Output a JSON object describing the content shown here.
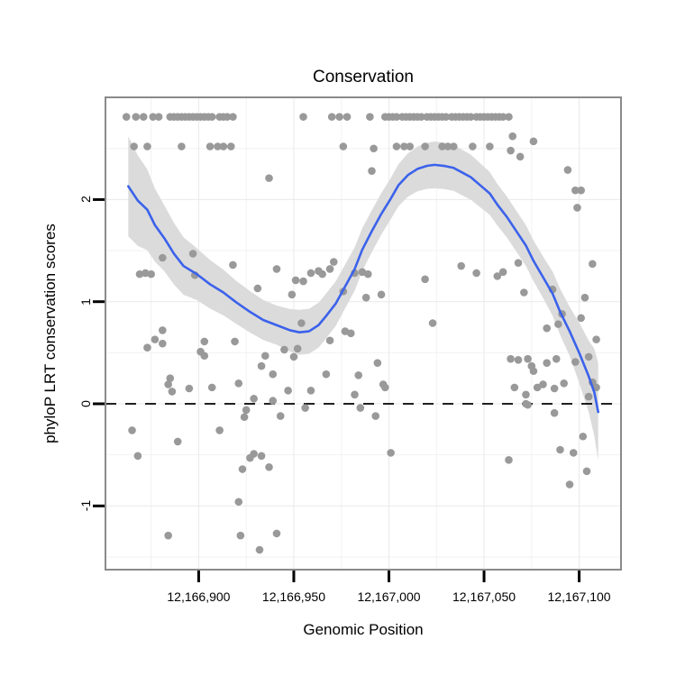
{
  "chart_data": {
    "type": "scatter",
    "title": "Conservation",
    "xlabel": "Genomic Position",
    "ylabel": "phyloP LRT conservation scores",
    "x_ticks": [
      12166900,
      12166950,
      12167000,
      12167050,
      12167100
    ],
    "x_tick_labels": [
      "12,166,900",
      "12,166,950",
      "12,167,000",
      "12,167,050",
      "12,167,100"
    ],
    "x_minor_ticks": [
      12166875,
      12166925,
      12166975,
      12167025,
      12167075
    ],
    "y_ticks": [
      -1,
      0,
      1,
      2
    ],
    "y_tick_labels": [
      "-1",
      "0",
      "1",
      "2"
    ],
    "y_minor_ticks": [
      -1.5,
      -0.5,
      0.5,
      1.5,
      2.5
    ],
    "xlim": [
      12166851,
      12167122
    ],
    "ylim": [
      -1.624,
      3.001
    ],
    "grid": "major+minor, light gray on white",
    "legend": "none",
    "hline": {
      "y": 0,
      "style": "dashed",
      "color": "#000000"
    },
    "colors": {
      "point": "#999999",
      "smooth_line": "#3B62EB",
      "confidence_band": "#DBDBDB",
      "grid_major": "#E9E9E9",
      "grid_minor": "#F2F2F2",
      "panel_border": "#8A8A8A",
      "tick": "#000000",
      "text": "#000000"
    },
    "points": [
      [
        12166862,
        2.81
      ],
      [
        12166867,
        2.81
      ],
      [
        12166871,
        2.81
      ],
      [
        12166876,
        2.81
      ],
      [
        12166879,
        2.81
      ],
      [
        12166885,
        2.81
      ],
      [
        12166887,
        2.81
      ],
      [
        12166889,
        2.81
      ],
      [
        12166891,
        2.81
      ],
      [
        12166893,
        2.81
      ],
      [
        12166895,
        2.81
      ],
      [
        12166897,
        2.81
      ],
      [
        12166899,
        2.81
      ],
      [
        12166901,
        2.81
      ],
      [
        12166903,
        2.81
      ],
      [
        12166905,
        2.81
      ],
      [
        12166907,
        2.81
      ],
      [
        12166911,
        2.81
      ],
      [
        12166913,
        2.81
      ],
      [
        12166915,
        2.81
      ],
      [
        12166918,
        2.81
      ],
      [
        12166955,
        2.81
      ],
      [
        12166970,
        2.81
      ],
      [
        12166974,
        2.81
      ],
      [
        12166978,
        2.81
      ],
      [
        12166990,
        2.81
      ],
      [
        12166998,
        2.81
      ],
      [
        12167000,
        2.81
      ],
      [
        12167002,
        2.81
      ],
      [
        12167004,
        2.81
      ],
      [
        12167007,
        2.81
      ],
      [
        12167009,
        2.81
      ],
      [
        12167011,
        2.81
      ],
      [
        12167013,
        2.81
      ],
      [
        12167015,
        2.81
      ],
      [
        12167017,
        2.81
      ],
      [
        12167020,
        2.81
      ],
      [
        12167022,
        2.81
      ],
      [
        12167024,
        2.81
      ],
      [
        12167026,
        2.81
      ],
      [
        12167028,
        2.81
      ],
      [
        12167030,
        2.81
      ],
      [
        12167033,
        2.81
      ],
      [
        12167035,
        2.81
      ],
      [
        12167037,
        2.81
      ],
      [
        12167039,
        2.81
      ],
      [
        12167041,
        2.81
      ],
      [
        12167043,
        2.81
      ],
      [
        12167046,
        2.81
      ],
      [
        12167048,
        2.81
      ],
      [
        12167050,
        2.81
      ],
      [
        12167052,
        2.81
      ],
      [
        12167054,
        2.81
      ],
      [
        12167056,
        2.81
      ],
      [
        12167058,
        2.81
      ],
      [
        12167060,
        2.81
      ],
      [
        12167063,
        2.81
      ],
      [
        12166866,
        2.52
      ],
      [
        12166873,
        2.52
      ],
      [
        12166891,
        2.52
      ],
      [
        12166906,
        2.52
      ],
      [
        12166910,
        2.52
      ],
      [
        12166913,
        2.52
      ],
      [
        12166917,
        2.52
      ],
      [
        12166976,
        2.52
      ],
      [
        12166992,
        2.5
      ],
      [
        12167004,
        2.52
      ],
      [
        12167008,
        2.52
      ],
      [
        12167011,
        2.52
      ],
      [
        12167019,
        2.52
      ],
      [
        12167028,
        2.52
      ],
      [
        12167031,
        2.52
      ],
      [
        12167034,
        2.52
      ],
      [
        12167044,
        2.52
      ],
      [
        12167053,
        2.52
      ],
      [
        12167064,
        2.48
      ],
      [
        12167065,
        2.62
      ],
      [
        12167069,
        2.42
      ],
      [
        12167076,
        2.57
      ],
      [
        12166937,
        2.21
      ],
      [
        12166991,
        2.28
      ],
      [
        12167094,
        2.29
      ],
      [
        12167098,
        2.09
      ],
      [
        12167101,
        2.09
      ],
      [
        12167099,
        1.92
      ],
      [
        12166881,
        1.43
      ],
      [
        12166897,
        1.47
      ],
      [
        12166869,
        1.27
      ],
      [
        12166872,
        1.28
      ],
      [
        12166875,
        1.27
      ],
      [
        12166898,
        1.26
      ],
      [
        12166918,
        1.36
      ],
      [
        12166931,
        1.13
      ],
      [
        12166941,
        1.32
      ],
      [
        12166951,
        1.21
      ],
      [
        12166955,
        1.2
      ],
      [
        12166959,
        1.28
      ],
      [
        12166963,
        1.3
      ],
      [
        12166965,
        1.27
      ],
      [
        12166969,
        1.32
      ],
      [
        12166971,
        1.39
      ],
      [
        12166982,
        1.28
      ],
      [
        12166986,
        1.29
      ],
      [
        12166989,
        1.27
      ],
      [
        12166949,
        1.07
      ],
      [
        12166976,
        1.1
      ],
      [
        12166988,
        1.04
      ],
      [
        12166996,
        1.07
      ],
      [
        12167019,
        1.22
      ],
      [
        12167038,
        1.35
      ],
      [
        12167046,
        1.28
      ],
      [
        12167057,
        1.25
      ],
      [
        12167060,
        1.29
      ],
      [
        12167068,
        1.38
      ],
      [
        12167107,
        1.37
      ],
      [
        12167071,
        1.09
      ],
      [
        12167086,
        1.12
      ],
      [
        12167103,
        1.04
      ],
      [
        12166954,
        0.79
      ],
      [
        12167023,
        0.79
      ],
      [
        12167091,
        0.88
      ],
      [
        12167101,
        0.84
      ],
      [
        12167083,
        0.74
      ],
      [
        12167089,
        0.78
      ],
      [
        12167109,
        0.63
      ],
      [
        12166881,
        0.72
      ],
      [
        12166877,
        0.63
      ],
      [
        12166881,
        0.59
      ],
      [
        12166873,
        0.55
      ],
      [
        12166903,
        0.61
      ],
      [
        12166901,
        0.51
      ],
      [
        12166903,
        0.47
      ],
      [
        12166919,
        0.61
      ],
      [
        12166969,
        0.62
      ],
      [
        12166977,
        0.71
      ],
      [
        12166980,
        0.69
      ],
      [
        12166935,
        0.47
      ],
      [
        12166933,
        0.37
      ],
      [
        12166939,
        0.29
      ],
      [
        12166945,
        0.53
      ],
      [
        12166952,
        0.54
      ],
      [
        12166950,
        0.46
      ],
      [
        12166994,
        0.4
      ],
      [
        12166967,
        0.29
      ],
      [
        12166984,
        0.28
      ],
      [
        12167064,
        0.44
      ],
      [
        12167068,
        0.43
      ],
      [
        12167073,
        0.44
      ],
      [
        12167075,
        0.37
      ],
      [
        12167076,
        0.32
      ],
      [
        12167083,
        0.4
      ],
      [
        12167088,
        0.44
      ],
      [
        12167098,
        0.41
      ],
      [
        12167105,
        0.46
      ],
      [
        12166885,
        0.25
      ],
      [
        12166884,
        0.19
      ],
      [
        12166886,
        0.12
      ],
      [
        12166895,
        0.15
      ],
      [
        12166907,
        0.16
      ],
      [
        12166921,
        0.2
      ],
      [
        12166997,
        0.19
      ],
      [
        12166998,
        0.16
      ],
      [
        12167066,
        0.16
      ],
      [
        12167072,
        0.09
      ],
      [
        12167078,
        0.16
      ],
      [
        12167081,
        0.19
      ],
      [
        12167087,
        0.15
      ],
      [
        12167092,
        0.2
      ],
      [
        12167107,
        0.21
      ],
      [
        12167109,
        0.16
      ],
      [
        12166929,
        0.05
      ],
      [
        12166939,
        0.03
      ],
      [
        12166947,
        0.13
      ],
      [
        12166959,
        0.13
      ],
      [
        12166982,
        0.09
      ],
      [
        12166956,
        -0.04
      ],
      [
        12166985,
        -0.04
      ],
      [
        12166993,
        -0.12
      ],
      [
        12166925,
        -0.06
      ],
      [
        12166924,
        -0.13
      ],
      [
        12166943,
        -0.12
      ],
      [
        12167072,
        0.0
      ],
      [
        12167073,
        -0.01
      ],
      [
        12167087,
        -0.09
      ],
      [
        12167105,
        0.07
      ],
      [
        12166865,
        -0.26
      ],
      [
        12166889,
        -0.37
      ],
      [
        12166868,
        -0.51
      ],
      [
        12166911,
        -0.26
      ],
      [
        12166927,
        -0.53
      ],
      [
        12166929,
        -0.49
      ],
      [
        12166933,
        -0.51
      ],
      [
        12166923,
        -0.64
      ],
      [
        12166937,
        -0.62
      ],
      [
        12166921,
        -0.96
      ],
      [
        12166884,
        -1.29
      ],
      [
        12166922,
        -1.29
      ],
      [
        12166941,
        -1.27
      ],
      [
        12166932,
        -1.43
      ],
      [
        12167001,
        -0.48
      ],
      [
        12167063,
        -0.55
      ],
      [
        12167090,
        -0.45
      ],
      [
        12167097,
        -0.48
      ],
      [
        12167102,
        -0.32
      ],
      [
        12167104,
        -0.66
      ],
      [
        12167095,
        -0.79
      ]
    ],
    "smooth_line": [
      [
        12166863,
        2.13
      ],
      [
        12166868,
        1.99
      ],
      [
        12166873,
        1.9
      ],
      [
        12166877,
        1.75
      ],
      [
        12166882,
        1.62
      ],
      [
        12166887,
        1.47
      ],
      [
        12166892,
        1.35
      ],
      [
        12166899,
        1.27
      ],
      [
        12166906,
        1.17
      ],
      [
        12166913,
        1.09
      ],
      [
        12166920,
        0.99
      ],
      [
        12166927,
        0.9
      ],
      [
        12166934,
        0.82
      ],
      [
        12166941,
        0.77
      ],
      [
        12166948,
        0.72
      ],
      [
        12166953,
        0.7
      ],
      [
        12166958,
        0.71
      ],
      [
        12166963,
        0.77
      ],
      [
        12166967,
        0.86
      ],
      [
        12166972,
        0.98
      ],
      [
        12166977,
        1.15
      ],
      [
        12166982,
        1.32
      ],
      [
        12166986,
        1.51
      ],
      [
        12166991,
        1.69
      ],
      [
        12166996,
        1.86
      ],
      [
        12167001,
        2.01
      ],
      [
        12167005,
        2.14
      ],
      [
        12167010,
        2.24
      ],
      [
        12167015,
        2.3
      ],
      [
        12167020,
        2.33
      ],
      [
        12167024,
        2.34
      ],
      [
        12167029,
        2.33
      ],
      [
        12167034,
        2.31
      ],
      [
        12167038,
        2.27
      ],
      [
        12167043,
        2.22
      ],
      [
        12167048,
        2.14
      ],
      [
        12167053,
        2.06
      ],
      [
        12167057,
        1.95
      ],
      [
        12167062,
        1.83
      ],
      [
        12167067,
        1.69
      ],
      [
        12167072,
        1.55
      ],
      [
        12167076,
        1.4
      ],
      [
        12167081,
        1.24
      ],
      [
        12167086,
        1.08
      ],
      [
        12167090,
        0.9
      ],
      [
        12167095,
        0.71
      ],
      [
        12167100,
        0.5
      ],
      [
        12167105,
        0.27
      ],
      [
        12167108,
        0.11
      ],
      [
        12167110,
        -0.08
      ]
    ],
    "band_halfwidth": [
      [
        12166863,
        0.49
      ],
      [
        12166880,
        0.33
      ],
      [
        12166900,
        0.25
      ],
      [
        12166920,
        0.21
      ],
      [
        12166940,
        0.19
      ],
      [
        12166953,
        0.22
      ],
      [
        12166970,
        0.22
      ],
      [
        12166985,
        0.21
      ],
      [
        12167000,
        0.2
      ],
      [
        12167024,
        0.23
      ],
      [
        12167045,
        0.22
      ],
      [
        12167060,
        0.2
      ],
      [
        12167080,
        0.2
      ],
      [
        12167095,
        0.24
      ],
      [
        12167105,
        0.35
      ],
      [
        12167110,
        0.48
      ]
    ]
  }
}
